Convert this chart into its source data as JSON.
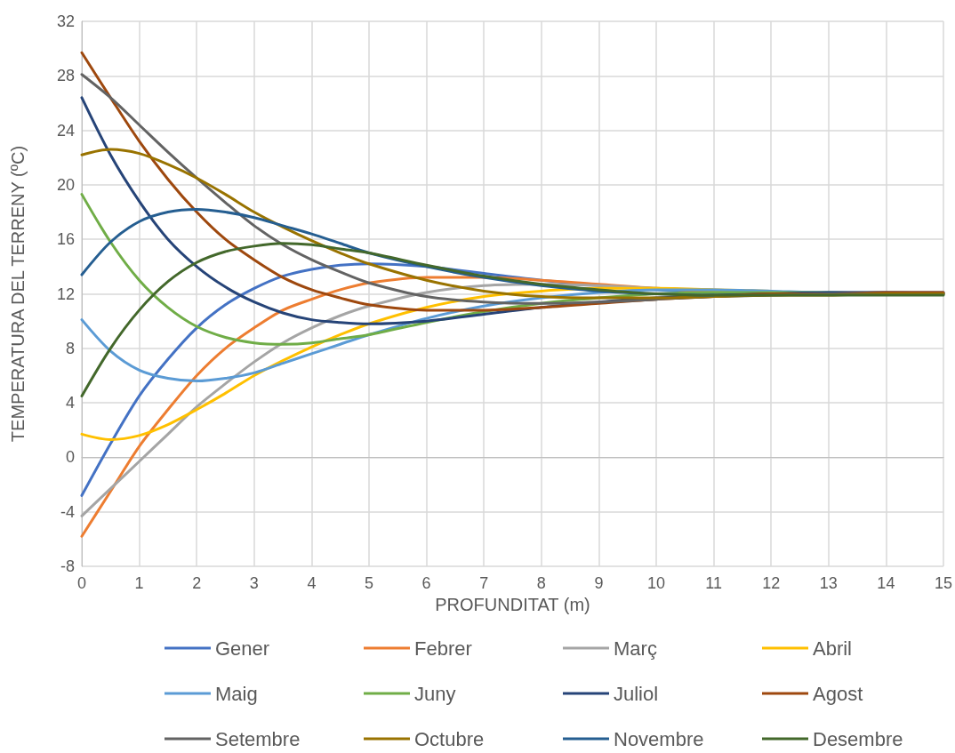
{
  "chart_data": {
    "type": "line",
    "xlabel": "PROFUNDITAT (m)",
    "ylabel": "TEMPERATURA DEL TERRENY (ºC)",
    "x": [
      0,
      0.5,
      1,
      1.5,
      2,
      2.5,
      3,
      3.5,
      4,
      4.5,
      5,
      6,
      7,
      8,
      9,
      10,
      11,
      12,
      13,
      14,
      15
    ],
    "xlim": [
      0,
      15
    ],
    "xticks": [
      0,
      1,
      2,
      3,
      4,
      5,
      6,
      7,
      8,
      9,
      10,
      11,
      12,
      13,
      14,
      15
    ],
    "ylim": [
      -8,
      32
    ],
    "yticks": [
      -8,
      -4,
      0,
      4,
      8,
      12,
      16,
      20,
      24,
      28,
      32
    ],
    "grid": true,
    "legend": "bottom",
    "marker": "none",
    "line_style": "solid",
    "series": [
      {
        "name": "Gener",
        "color": "#4472c4",
        "values": [
          -2.8,
          1.0,
          4.5,
          7.2,
          9.5,
          11.2,
          12.4,
          13.3,
          13.8,
          14.1,
          14.2,
          14.0,
          13.5,
          13.0,
          12.6,
          12.3,
          12.1,
          12.0,
          12.0,
          12.0,
          12.0
        ]
      },
      {
        "name": "Febrer",
        "color": "#ed7d31",
        "values": [
          -5.8,
          -2.5,
          0.8,
          3.5,
          6.0,
          8.0,
          9.5,
          10.8,
          11.6,
          12.3,
          12.8,
          13.2,
          13.2,
          13.0,
          12.7,
          12.4,
          12.2,
          null,
          null,
          null,
          null
        ]
      },
      {
        "name": "Març",
        "color": "#a5a5a5",
        "values": [
          -4.3,
          -2.3,
          -0.3,
          1.7,
          3.7,
          5.4,
          7.0,
          8.4,
          9.5,
          10.4,
          11.1,
          12.1,
          12.6,
          12.7,
          12.6,
          12.4,
          12.3,
          12.1,
          12.0,
          12.0,
          12.0
        ]
      },
      {
        "name": "Abril",
        "color": "#ffc000",
        "values": [
          1.7,
          1.3,
          1.6,
          2.4,
          3.5,
          4.7,
          6.0,
          7.1,
          8.1,
          9.0,
          9.8,
          11.0,
          11.8,
          12.2,
          12.4,
          12.4,
          12.3,
          12.2,
          null,
          null,
          null
        ]
      },
      {
        "name": "Maig",
        "color": "#5b9bd5",
        "values": [
          10.1,
          7.8,
          6.4,
          5.8,
          5.6,
          5.8,
          6.2,
          6.9,
          7.6,
          8.3,
          9.0,
          10.2,
          11.1,
          11.7,
          12.1,
          12.3,
          12.3,
          12.2,
          12.1,
          12.1,
          12.0
        ]
      },
      {
        "name": "Juny",
        "color": "#70ad47",
        "values": [
          19.3,
          15.8,
          13.0,
          11.0,
          9.6,
          8.8,
          8.4,
          8.3,
          8.4,
          8.7,
          9.0,
          9.9,
          10.7,
          11.3,
          11.7,
          12.0,
          12.1,
          12.1,
          12.1,
          12.0,
          12.0
        ]
      },
      {
        "name": "Juliol",
        "color": "#264478",
        "values": [
          26.4,
          22.2,
          18.8,
          16.0,
          14.0,
          12.5,
          11.4,
          10.6,
          10.1,
          9.9,
          9.8,
          10.0,
          10.5,
          11.0,
          11.4,
          11.7,
          11.9,
          12.0,
          12.1,
          12.1,
          12.1
        ]
      },
      {
        "name": "Agost",
        "color": "#9e480e",
        "values": [
          29.7,
          26.4,
          23.2,
          20.4,
          18.0,
          16.0,
          14.5,
          13.2,
          12.3,
          11.7,
          11.2,
          10.8,
          10.8,
          11.0,
          11.3,
          11.6,
          11.8,
          12.0,
          12.0,
          12.1,
          12.1
        ]
      },
      {
        "name": "Setembre",
        "color": "#636363",
        "values": [
          28.1,
          26.4,
          24.4,
          22.4,
          20.5,
          18.7,
          17.0,
          15.6,
          14.5,
          13.6,
          12.8,
          11.8,
          11.4,
          11.3,
          11.4,
          11.6,
          11.8,
          11.9,
          12.0,
          12.0,
          12.0
        ]
      },
      {
        "name": "Octubre",
        "color": "#997300",
        "values": [
          22.2,
          22.6,
          22.3,
          21.5,
          20.5,
          19.3,
          18.0,
          16.9,
          15.9,
          15.0,
          14.2,
          13.0,
          12.2,
          11.8,
          11.7,
          11.7,
          11.8,
          11.9,
          11.9,
          12.0,
          12.0
        ]
      },
      {
        "name": "Novembre",
        "color": "#255e91",
        "values": [
          13.4,
          15.8,
          17.3,
          18.0,
          18.2,
          18.0,
          17.6,
          17.0,
          16.4,
          15.7,
          15.0,
          14.0,
          13.2,
          12.6,
          12.2,
          12.0,
          11.9,
          null,
          null,
          null,
          null
        ]
      },
      {
        "name": "Desembre",
        "color": "#43682b",
        "values": [
          4.5,
          8.0,
          10.8,
          12.9,
          14.3,
          15.1,
          15.5,
          15.7,
          15.6,
          15.3,
          15.0,
          14.1,
          13.3,
          12.7,
          12.3,
          12.0,
          11.9,
          11.9,
          11.9,
          11.9,
          11.9
        ]
      }
    ]
  }
}
